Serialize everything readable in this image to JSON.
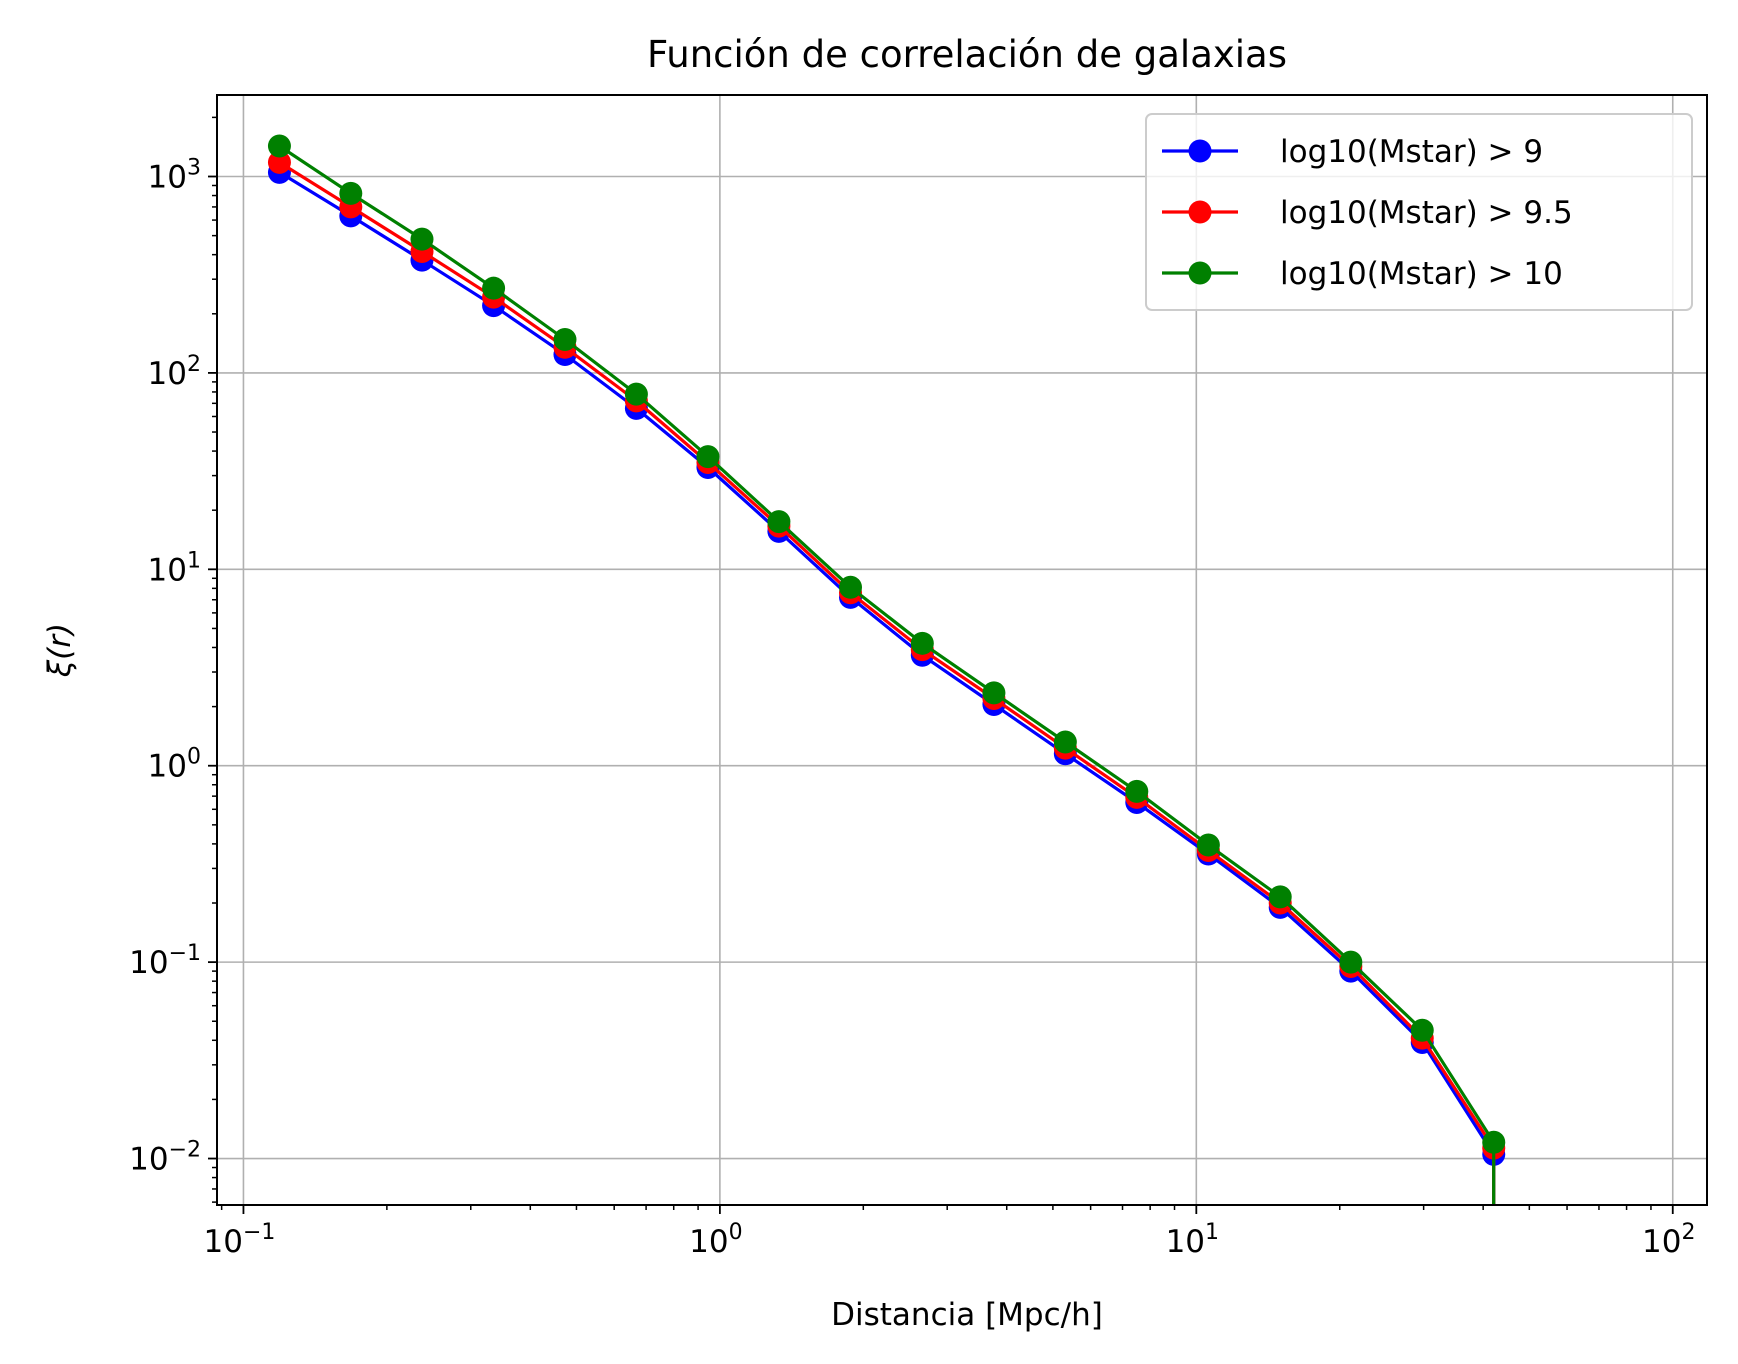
{
  "chart_data": {
    "type": "line",
    "title": "Función de correlación de galaxias",
    "xlabel": "Distancia [Mpc/h]",
    "ylabel": "ξ(r)",
    "xscale": "log",
    "yscale": "log",
    "xlim": [
      0.088,
      118
    ],
    "ylim": [
      0.0058,
      2600
    ],
    "grid": true,
    "legend_position": "top-right",
    "x_ticks": [
      {
        "base": "10",
        "exp": "−1",
        "value": 0.1
      },
      {
        "base": "10",
        "exp": "0",
        "value": 1
      },
      {
        "base": "10",
        "exp": "1",
        "value": 10
      },
      {
        "base": "10",
        "exp": "2",
        "value": 100
      }
    ],
    "y_ticks": [
      {
        "base": "10",
        "exp": "−2",
        "value": 0.01
      },
      {
        "base": "10",
        "exp": "−1",
        "value": 0.1
      },
      {
        "base": "10",
        "exp": "0",
        "value": 1
      },
      {
        "base": "10",
        "exp": "1",
        "value": 10
      },
      {
        "base": "10",
        "exp": "2",
        "value": 100
      },
      {
        "base": "10",
        "exp": "3",
        "value": 1000
      }
    ],
    "x": [
      0.119,
      0.168,
      0.237,
      0.335,
      0.473,
      0.668,
      0.944,
      1.33,
      1.88,
      2.66,
      3.76,
      5.31,
      7.5,
      10.6,
      15.0,
      21.1,
      29.8,
      42.1
    ],
    "series": [
      {
        "name": "log10(Mstar) > 9",
        "color": "#0000ff",
        "values": [
          1050,
          630,
          375,
          220,
          124,
          66,
          33,
          15.6,
          7.2,
          3.65,
          2.05,
          1.15,
          0.65,
          0.355,
          0.19,
          0.09,
          0.039,
          0.0105
        ],
        "tail_to": 0.0052
      },
      {
        "name": "log10(Mstar) > 9.5",
        "color": "#ff0000",
        "values": [
          1180,
          700,
          415,
          243,
          135,
          72,
          35,
          16.6,
          7.6,
          3.9,
          2.2,
          1.23,
          0.69,
          0.37,
          0.2,
          0.095,
          0.041,
          0.0113
        ],
        "tail_to": 0.0052
      },
      {
        "name": "log10(Mstar) > 10",
        "color": "#008000",
        "values": [
          1430,
          820,
          480,
          270,
          148,
          78,
          37.5,
          17.5,
          8.1,
          4.2,
          2.35,
          1.32,
          0.74,
          0.395,
          0.215,
          0.1,
          0.045,
          0.0121
        ],
        "tail_to": 0.0052
      }
    ]
  }
}
